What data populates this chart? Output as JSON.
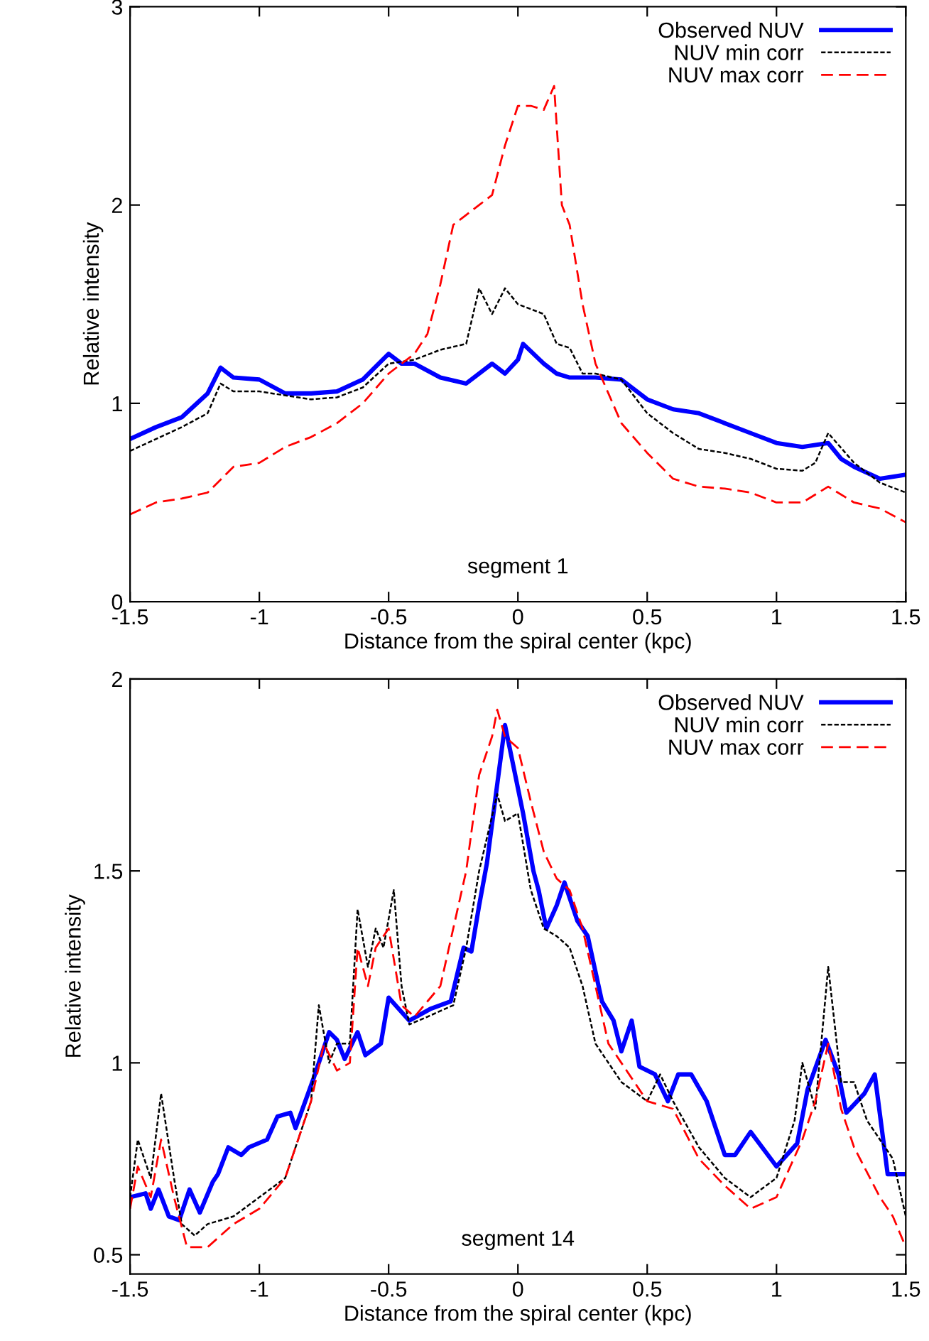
{
  "chart_data": [
    {
      "type": "line",
      "xlabel": "Distance from the spiral center (kpc)",
      "ylabel": "Relative intensity",
      "annotations": [
        "segment 1"
      ],
      "xlim": [
        -1.5,
        1.5
      ],
      "xticks": [
        -1.5,
        -1,
        -0.5,
        0,
        0.5,
        1,
        1.5
      ],
      "ylim": [
        0,
        3
      ],
      "yticks": [
        0,
        1,
        2,
        3
      ],
      "grid": false,
      "legend": "top right",
      "series": [
        {
          "name": "Observed NUV",
          "color": "#0000ff",
          "line_style": "solid",
          "x": [
            -1.5,
            -1.4,
            -1.3,
            -1.2,
            -1.15,
            -1.1,
            -1.0,
            -0.9,
            -0.8,
            -0.7,
            -0.6,
            -0.5,
            -0.45,
            -0.4,
            -0.3,
            -0.2,
            -0.1,
            -0.05,
            0,
            0.02,
            0.1,
            0.15,
            0.2,
            0.3,
            0.4,
            0.5,
            0.6,
            0.7,
            0.8,
            0.9,
            1.0,
            1.1,
            1.2,
            1.25,
            1.3,
            1.4,
            1.5
          ],
          "values": [
            0.82,
            0.88,
            0.93,
            1.05,
            1.18,
            1.13,
            1.12,
            1.05,
            1.05,
            1.06,
            1.12,
            1.25,
            1.2,
            1.2,
            1.13,
            1.1,
            1.2,
            1.15,
            1.22,
            1.3,
            1.2,
            1.15,
            1.13,
            1.13,
            1.12,
            1.02,
            0.97,
            0.95,
            0.9,
            0.85,
            0.8,
            0.78,
            0.8,
            0.72,
            0.68,
            0.62,
            0.64
          ]
        },
        {
          "name": "NUV min corr",
          "color": "#000000",
          "line_style": "dotted",
          "x": [
            -1.5,
            -1.4,
            -1.3,
            -1.2,
            -1.15,
            -1.1,
            -1.0,
            -0.8,
            -0.7,
            -0.6,
            -0.5,
            -0.4,
            -0.3,
            -0.2,
            -0.15,
            -0.1,
            -0.05,
            0,
            0.1,
            0.15,
            0.2,
            0.25,
            0.3,
            0.4,
            0.5,
            0.6,
            0.7,
            0.8,
            0.9,
            1.0,
            1.1,
            1.15,
            1.2,
            1.3,
            1.4,
            1.5
          ],
          "values": [
            0.76,
            0.82,
            0.88,
            0.95,
            1.1,
            1.06,
            1.06,
            1.02,
            1.03,
            1.08,
            1.2,
            1.22,
            1.27,
            1.3,
            1.58,
            1.45,
            1.58,
            1.5,
            1.45,
            1.3,
            1.28,
            1.15,
            1.15,
            1.12,
            0.95,
            0.85,
            0.77,
            0.75,
            0.72,
            0.67,
            0.66,
            0.7,
            0.85,
            0.7,
            0.6,
            0.55
          ]
        },
        {
          "name": "NUV max corr",
          "color": "#ff0000",
          "line_style": "dashed",
          "x": [
            -1.5,
            -1.4,
            -1.3,
            -1.2,
            -1.1,
            -1.0,
            -0.9,
            -0.8,
            -0.7,
            -0.6,
            -0.5,
            -0.4,
            -0.35,
            -0.3,
            -0.25,
            -0.2,
            -0.15,
            -0.1,
            -0.05,
            0,
            0.05,
            0.1,
            0.14,
            0.17,
            0.2,
            0.25,
            0.3,
            0.35,
            0.4,
            0.5,
            0.6,
            0.7,
            0.8,
            0.9,
            1.0,
            1.1,
            1.2,
            1.3,
            1.4,
            1.5
          ],
          "values": [
            0.44,
            0.5,
            0.52,
            0.55,
            0.68,
            0.7,
            0.78,
            0.83,
            0.9,
            1.0,
            1.15,
            1.25,
            1.35,
            1.6,
            1.9,
            1.95,
            2.0,
            2.05,
            2.3,
            2.5,
            2.5,
            2.48,
            2.6,
            2.0,
            1.9,
            1.5,
            1.2,
            1.05,
            0.9,
            0.75,
            0.62,
            0.58,
            0.57,
            0.55,
            0.5,
            0.5,
            0.58,
            0.5,
            0.47,
            0.4
          ]
        }
      ]
    },
    {
      "type": "line",
      "xlabel": "Distance from the spiral center (kpc)",
      "ylabel": "Relative intensity",
      "annotations": [
        "segment 14"
      ],
      "xlim": [
        -1.5,
        1.5
      ],
      "xticks": [
        -1.5,
        -1,
        -0.5,
        0,
        0.5,
        1,
        1.5
      ],
      "ylim": [
        0.45,
        2
      ],
      "yticks": [
        0.5,
        1,
        1.5,
        2
      ],
      "grid": false,
      "legend": "top right",
      "series": [
        {
          "name": "Observed NUV",
          "color": "#0000ff",
          "line_style": "solid",
          "x": [
            -1.5,
            -1.44,
            -1.42,
            -1.39,
            -1.35,
            -1.31,
            -1.27,
            -1.23,
            -1.18,
            -1.16,
            -1.12,
            -1.07,
            -1.04,
            -0.97,
            -0.93,
            -0.88,
            -0.86,
            -0.79,
            -0.73,
            -0.7,
            -0.67,
            -0.62,
            -0.59,
            -0.53,
            -0.5,
            -0.42,
            -0.34,
            -0.26,
            -0.21,
            -0.18,
            -0.15,
            -0.12,
            -0.05,
            0.02,
            0.06,
            0.08,
            0.11,
            0.15,
            0.18,
            0.2,
            0.23,
            0.27,
            0.325,
            0.37,
            0.4,
            0.44,
            0.47,
            0.53,
            0.58,
            0.62,
            0.67,
            0.73,
            0.8,
            0.84,
            0.9,
            1.0,
            1.08,
            1.12,
            1.19,
            1.24,
            1.27,
            1.34,
            1.38,
            1.43,
            1.49
          ],
          "values": [
            0.65,
            0.66,
            0.62,
            0.67,
            0.6,
            0.59,
            0.67,
            0.61,
            0.69,
            0.71,
            0.78,
            0.76,
            0.78,
            0.8,
            0.86,
            0.87,
            0.83,
            0.96,
            1.08,
            1.06,
            1.01,
            1.08,
            1.02,
            1.05,
            1.17,
            1.11,
            1.14,
            1.16,
            1.3,
            1.29,
            1.41,
            1.52,
            1.88,
            1.65,
            1.5,
            1.45,
            1.35,
            1.41,
            1.47,
            1.43,
            1.37,
            1.33,
            1.16,
            1.11,
            1.03,
            1.11,
            0.99,
            0.97,
            0.9,
            0.97,
            0.97,
            0.9,
            0.76,
            0.76,
            0.82,
            0.73,
            0.79,
            0.93,
            1.06,
            0.97,
            0.87,
            0.92,
            0.97,
            0.71,
            0.71
          ]
        },
        {
          "name": "NUV min corr",
          "color": "#000000",
          "line_style": "dotted",
          "x": [
            -1.5,
            -1.47,
            -1.42,
            -1.38,
            -1.33,
            -1.3,
            -1.25,
            -1.2,
            -1.1,
            -1.0,
            -0.9,
            -0.85,
            -0.8,
            -0.77,
            -0.73,
            -0.7,
            -0.65,
            -0.62,
            -0.58,
            -0.55,
            -0.52,
            -0.48,
            -0.45,
            -0.42,
            -0.35,
            -0.25,
            -0.2,
            -0.15,
            -0.08,
            -0.05,
            0,
            0.05,
            0.1,
            0.15,
            0.2,
            0.25,
            0.3,
            0.4,
            0.5,
            0.55,
            0.6,
            0.7,
            0.8,
            0.9,
            1.0,
            1.07,
            1.1,
            1.15,
            1.2,
            1.25,
            1.3,
            1.35,
            1.4,
            1.45,
            1.5
          ],
          "values": [
            0.65,
            0.8,
            0.7,
            0.92,
            0.7,
            0.58,
            0.55,
            0.58,
            0.6,
            0.65,
            0.7,
            0.8,
            0.9,
            1.15,
            1.0,
            1.05,
            1.05,
            1.4,
            1.25,
            1.35,
            1.3,
            1.45,
            1.2,
            1.1,
            1.12,
            1.15,
            1.3,
            1.5,
            1.7,
            1.63,
            1.65,
            1.45,
            1.35,
            1.33,
            1.3,
            1.2,
            1.05,
            0.95,
            0.9,
            0.97,
            0.9,
            0.78,
            0.7,
            0.65,
            0.7,
            0.85,
            1.0,
            0.88,
            1.25,
            0.95,
            0.95,
            0.85,
            0.8,
            0.75,
            0.6
          ]
        },
        {
          "name": "NUV max corr",
          "color": "#ff0000",
          "line_style": "dashed",
          "x": [
            -1.5,
            -1.47,
            -1.42,
            -1.38,
            -1.33,
            -1.28,
            -1.2,
            -1.1,
            -1.0,
            -0.9,
            -0.85,
            -0.8,
            -0.75,
            -0.7,
            -0.65,
            -0.62,
            -0.58,
            -0.55,
            -0.5,
            -0.45,
            -0.4,
            -0.3,
            -0.2,
            -0.15,
            -0.1,
            -0.08,
            -0.05,
            0,
            0.05,
            0.1,
            0.15,
            0.2,
            0.25,
            0.3,
            0.35,
            0.4,
            0.5,
            0.6,
            0.7,
            0.8,
            0.9,
            1.0,
            1.1,
            1.15,
            1.2,
            1.25,
            1.3,
            1.4,
            1.45,
            1.5
          ],
          "values": [
            0.62,
            0.73,
            0.65,
            0.8,
            0.65,
            0.52,
            0.52,
            0.58,
            0.62,
            0.7,
            0.8,
            0.9,
            1.05,
            0.98,
            1.0,
            1.3,
            1.2,
            1.3,
            1.35,
            1.15,
            1.12,
            1.2,
            1.5,
            1.75,
            1.85,
            1.92,
            1.85,
            1.82,
            1.68,
            1.55,
            1.48,
            1.45,
            1.35,
            1.2,
            1.05,
            1.0,
            0.9,
            0.88,
            0.75,
            0.68,
            0.62,
            0.65,
            0.8,
            0.9,
            1.05,
            0.88,
            0.78,
            0.65,
            0.6,
            0.52
          ]
        }
      ]
    }
  ]
}
